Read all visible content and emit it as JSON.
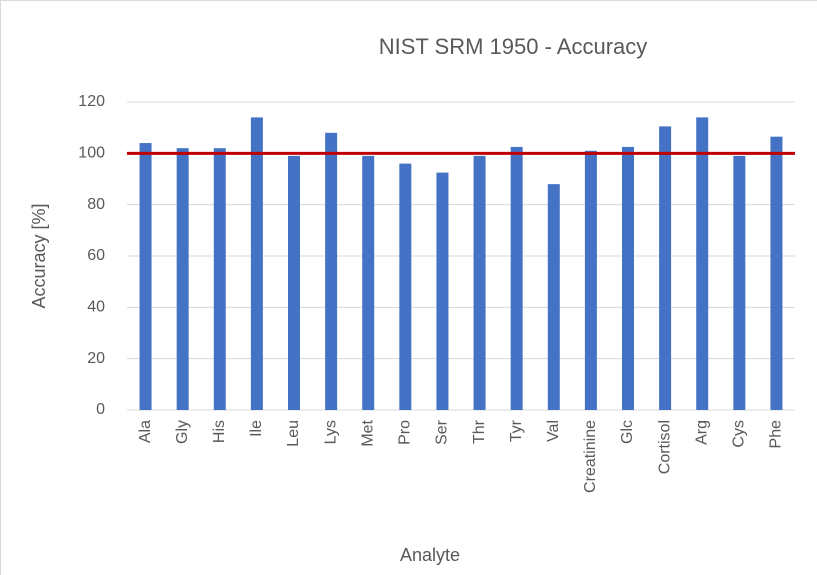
{
  "chart_data": {
    "type": "bar",
    "title": "NIST SRM 1950 - Accuracy",
    "x_label": "Analyte",
    "y_label": "Accuracy [%]",
    "categories": [
      "Ala",
      "Gly",
      "His",
      "Ile",
      "Leu",
      "Lys",
      "Met",
      "Pro",
      "Ser",
      "Thr",
      "Tyr",
      "Val",
      "Creatinine",
      "Glc",
      "Cortisol",
      "Arg",
      "Cys",
      "Phe"
    ],
    "values": [
      104,
      102,
      102,
      114,
      99,
      108,
      99,
      96,
      92.5,
      99,
      102.5,
      88,
      101,
      102.5,
      110.5,
      114,
      99,
      106.5
    ],
    "color": "#4472c4",
    "reference_line": {
      "value": 100,
      "color": "#c00000"
    },
    "ylim": [
      0,
      120
    ],
    "yticks": [
      0,
      20,
      40,
      60,
      80,
      100,
      120
    ],
    "grid": true
  }
}
